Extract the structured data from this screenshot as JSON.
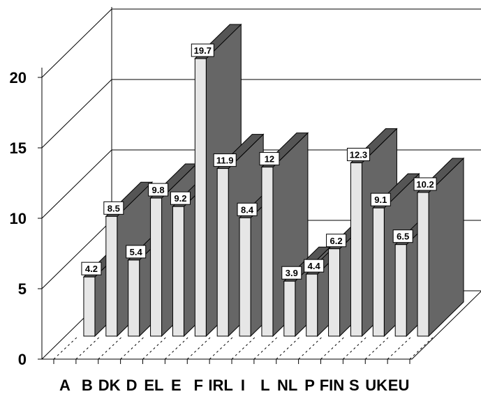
{
  "chart_data": {
    "type": "bar",
    "title": "",
    "xlabel": "",
    "ylabel": "",
    "categories": [
      "A",
      "B",
      "DK",
      "D",
      "EL",
      "E",
      "F",
      "IRL",
      "I",
      "L",
      "NL",
      "P",
      "FIN",
      "S",
      "UK",
      "EU"
    ],
    "values": [
      4.2,
      8.5,
      5.4,
      9.8,
      9.2,
      19.7,
      11.9,
      8.4,
      12,
      3.9,
      4.4,
      6.2,
      12.3,
      9.1,
      6.5,
      10.2
    ],
    "value_labels": [
      "4.2",
      "8.5",
      "5.4",
      "9.8",
      "9.2",
      "19.7",
      "11.9",
      "8.4",
      "12",
      "3.9",
      "4.4",
      "6.2",
      "12.3",
      "9.1",
      "6.5",
      "10.2"
    ],
    "ylim": [
      0,
      20
    ],
    "yticks": [
      "0",
      "5",
      "10",
      "15",
      "20"
    ],
    "grid": true,
    "three_d": true,
    "colors": {
      "bar_front": "#e6e6e6",
      "bar_side": "#666666",
      "bar_top": "#555555",
      "grid": "#000000"
    }
  }
}
